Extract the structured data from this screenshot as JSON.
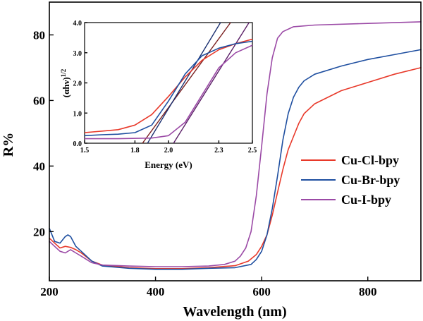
{
  "chart_data": [
    {
      "type": "line",
      "title": "",
      "xlabel": "Wavelength (nm)",
      "ylabel": "R%",
      "xlim": [
        200,
        900
      ],
      "ylim": [
        5,
        90
      ],
      "xticks": [
        200,
        400,
        600,
        800
      ],
      "yticks": [
        20,
        40,
        60,
        80
      ],
      "grid": false,
      "legend_position": "lower-right",
      "series": [
        {
          "name": "Cu-Cl-bpy",
          "color": "#e8392a",
          "points": [
            [
              200,
              18
            ],
            [
              210,
              16.5
            ],
            [
              220,
              15
            ],
            [
              230,
              15.5
            ],
            [
              240,
              15.2
            ],
            [
              250,
              14.5
            ],
            [
              260,
              13.5
            ],
            [
              280,
              11
            ],
            [
              300,
              9.8
            ],
            [
              350,
              9
            ],
            [
              400,
              8.7
            ],
            [
              450,
              8.7
            ],
            [
              500,
              9
            ],
            [
              550,
              9.6
            ],
            [
              575,
              11
            ],
            [
              590,
              13
            ],
            [
              600,
              15.5
            ],
            [
              610,
              19
            ],
            [
              620,
              25
            ],
            [
              630,
              32
            ],
            [
              640,
              39
            ],
            [
              650,
              45
            ],
            [
              660,
              49
            ],
            [
              670,
              53
            ],
            [
              680,
              56
            ],
            [
              700,
              59
            ],
            [
              750,
              63
            ],
            [
              800,
              65.5
            ],
            [
              850,
              68
            ],
            [
              900,
              70
            ]
          ]
        },
        {
          "name": "Cu-Br-bpy",
          "color": "#1f4fa0",
          "points": [
            [
              200,
              21
            ],
            [
              210,
              17
            ],
            [
              220,
              16.5
            ],
            [
              230,
              18.5
            ],
            [
              235,
              19
            ],
            [
              240,
              18.5
            ],
            [
              250,
              15.5
            ],
            [
              260,
              14
            ],
            [
              280,
              11
            ],
            [
              300,
              9.5
            ],
            [
              350,
              8.8
            ],
            [
              400,
              8.5
            ],
            [
              450,
              8.5
            ],
            [
              500,
              8.8
            ],
            [
              550,
              9
            ],
            [
              580,
              10
            ],
            [
              590,
              11.5
            ],
            [
              600,
              14
            ],
            [
              610,
              19
            ],
            [
              620,
              27
            ],
            [
              630,
              37
            ],
            [
              640,
              48
            ],
            [
              650,
              56
            ],
            [
              660,
              61
            ],
            [
              670,
              64
            ],
            [
              680,
              66
            ],
            [
              700,
              68
            ],
            [
              750,
              70.5
            ],
            [
              800,
              72.5
            ],
            [
              850,
              74
            ],
            [
              900,
              75.5
            ]
          ]
        },
        {
          "name": "Cu-I-bpy",
          "color": "#9b4aa6",
          "points": [
            [
              200,
              17
            ],
            [
              210,
              15.5
            ],
            [
              220,
              14
            ],
            [
              230,
              13.5
            ],
            [
              240,
              14.5
            ],
            [
              250,
              13.5
            ],
            [
              260,
              12.5
            ],
            [
              280,
              10.5
            ],
            [
              300,
              9.8
            ],
            [
              350,
              9.5
            ],
            [
              400,
              9.3
            ],
            [
              450,
              9.3
            ],
            [
              500,
              9.5
            ],
            [
              530,
              10
            ],
            [
              550,
              11
            ],
            [
              560,
              12.5
            ],
            [
              570,
              15
            ],
            [
              580,
              20
            ],
            [
              590,
              31
            ],
            [
              600,
              46
            ],
            [
              610,
              62
            ],
            [
              620,
              73
            ],
            [
              630,
              79
            ],
            [
              640,
              81
            ],
            [
              660,
              82.5
            ],
            [
              700,
              83
            ],
            [
              800,
              83.5
            ],
            [
              900,
              84
            ]
          ]
        }
      ]
    },
    {
      "type": "line",
      "title": "",
      "xlabel": "Energy (eV)",
      "ylabel": "(αhν)1/2",
      "ylabel_main": "(αhν)",
      "ylabel_sup": "1/2",
      "xlim": [
        1.5,
        2.5
      ],
      "ylim": [
        0,
        4.0
      ],
      "xticks": [
        "1.5",
        "1.8",
        "2.0",
        "2.3",
        "2.5"
      ],
      "yticks": [
        "0.0",
        "1.0",
        "2.0",
        "3.0",
        "4.0"
      ],
      "series": [
        {
          "name": "Cu-Cl-bpy",
          "color": "#e8392a",
          "points": [
            [
              1.5,
              0.35
            ],
            [
              1.6,
              0.4
            ],
            [
              1.7,
              0.45
            ],
            [
              1.8,
              0.6
            ],
            [
              1.9,
              0.95
            ],
            [
              2.0,
              1.55
            ],
            [
              2.1,
              2.2
            ],
            [
              2.2,
              2.75
            ],
            [
              2.3,
              3.1
            ],
            [
              2.4,
              3.3
            ],
            [
              2.5,
              3.45
            ]
          ]
        },
        {
          "name": "Cu-Br-bpy",
          "color": "#1f4fa0",
          "points": [
            [
              1.5,
              0.25
            ],
            [
              1.6,
              0.28
            ],
            [
              1.7,
              0.3
            ],
            [
              1.8,
              0.35
            ],
            [
              1.9,
              0.6
            ],
            [
              2.0,
              1.4
            ],
            [
              2.1,
              2.3
            ],
            [
              2.2,
              2.9
            ],
            [
              2.3,
              3.15
            ],
            [
              2.4,
              3.3
            ],
            [
              2.5,
              3.38
            ]
          ]
        },
        {
          "name": "Cu-I-bpy",
          "color": "#9b4aa6",
          "points": [
            [
              1.5,
              0.15
            ],
            [
              1.7,
              0.15
            ],
            [
              1.9,
              0.17
            ],
            [
              2.0,
              0.25
            ],
            [
              2.1,
              0.7
            ],
            [
              2.2,
              1.6
            ],
            [
              2.3,
              2.5
            ],
            [
              2.4,
              3.0
            ],
            [
              2.5,
              3.25
            ]
          ]
        }
      ],
      "fit_lines": [
        {
          "color": "#7a1f1f",
          "points": [
            [
              1.845,
              0
            ],
            [
              2.37,
              4.0
            ]
          ]
        },
        {
          "color": "#1a2f70",
          "points": [
            [
              1.875,
              0
            ],
            [
              2.31,
              4.0
            ]
          ]
        },
        {
          "color": "#5a1e66",
          "points": [
            [
              2.03,
              0
            ],
            [
              2.48,
              4.0
            ]
          ]
        }
      ]
    }
  ]
}
